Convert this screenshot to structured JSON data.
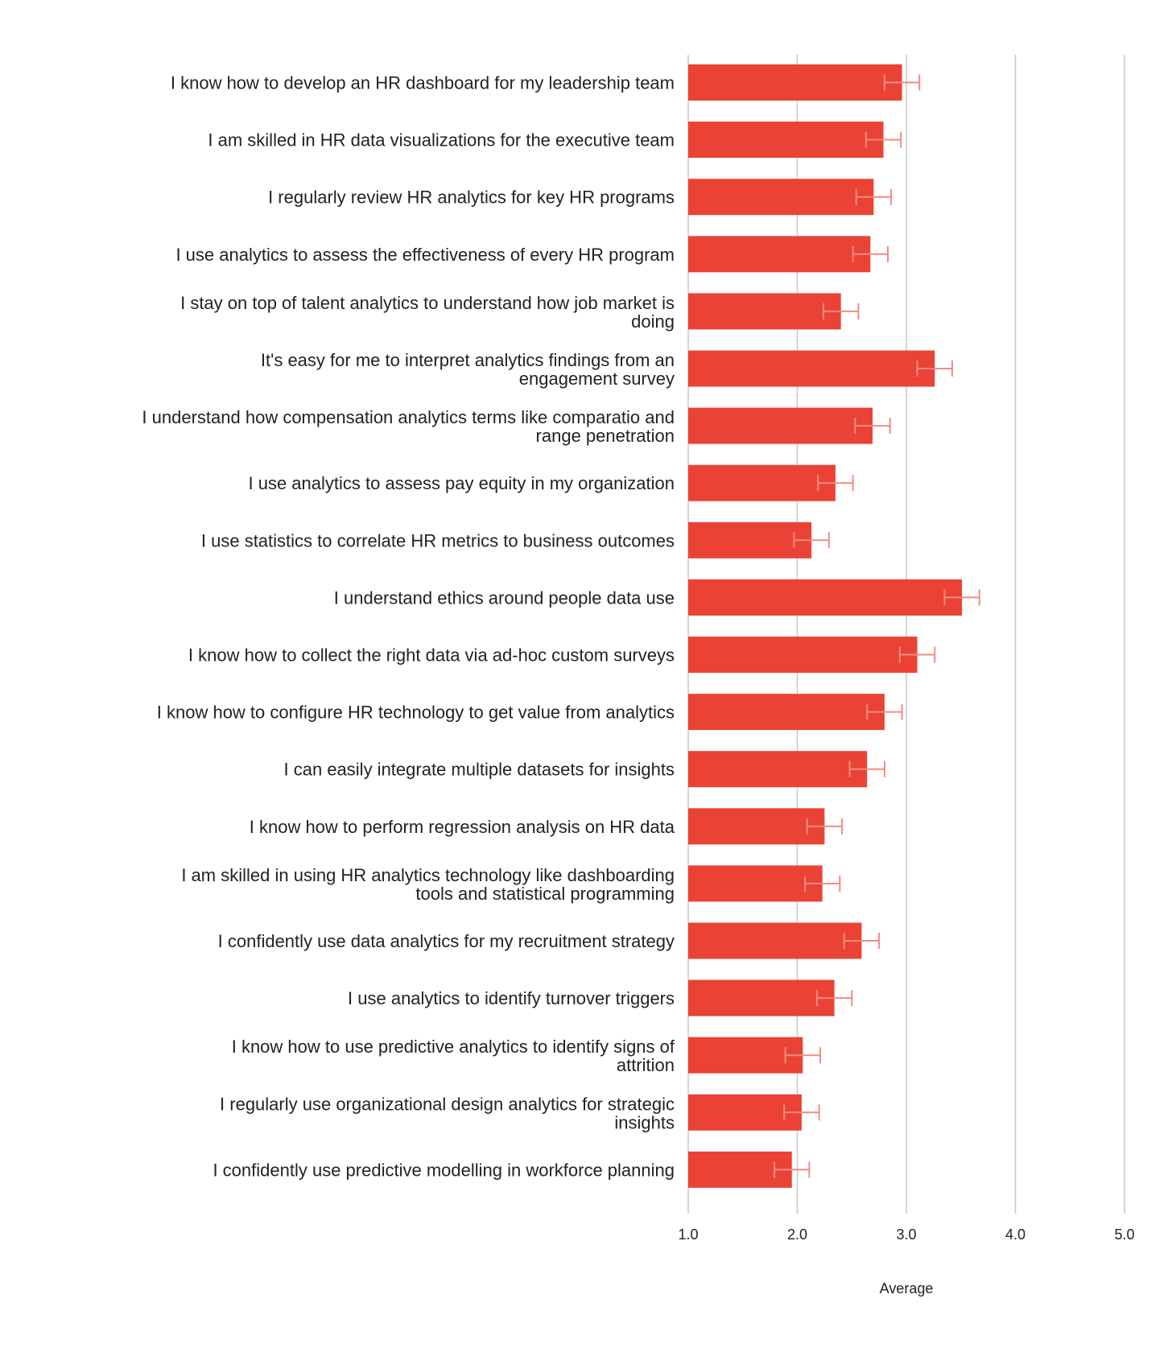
{
  "chart_data": {
    "type": "bar",
    "orientation": "horizontal",
    "title": "",
    "xlabel": "Average",
    "ylabel": "",
    "xlim": [
      1.0,
      5.0
    ],
    "xticks": [
      "1.0",
      "2.0",
      "3.0",
      "4.0",
      "5.0"
    ],
    "grid": true,
    "bar_color": "#ea4335",
    "error_bar_color": "#f28b82",
    "categories": [
      "I know how to develop an HR dashboard for my leadership team",
      "I am skilled in HR data visualizations for the executive team",
      "I regularly review HR analytics for key HR programs",
      "I use analytics to assess the effectiveness of every HR program",
      "I stay on top of talent analytics to understand how job market is doing",
      "It's easy for me to interpret analytics findings from an engagement survey",
      "I understand how compensation analytics terms like comparatio and range penetration",
      "I use analytics to assess pay equity in my organization",
      "I use statistics to correlate HR metrics to business outcomes",
      "I understand ethics around people data use",
      "I know how to collect the right data via ad-hoc custom surveys",
      "I know how to configure HR technology to get value from analytics",
      "I can easily integrate multiple datasets for insights",
      "I know how to perform regression analysis on HR data",
      "I am skilled in using HR analytics technology like dashboarding tools and statistical programming",
      "I confidently use data analytics for my recruitment strategy",
      "I use analytics to identify turnover triggers",
      "I know how to use predictive analytics to identify signs of attrition",
      "I regularly use organizational design analytics for strategic insights",
      "I confidently use predictive modelling in workforce planning"
    ],
    "values": [
      2.96,
      2.79,
      2.7,
      2.67,
      2.4,
      3.26,
      2.69,
      2.35,
      2.13,
      3.51,
      3.1,
      2.8,
      2.64,
      2.25,
      2.23,
      2.59,
      2.34,
      2.05,
      2.04,
      1.95
    ],
    "error_margin": [
      0.16,
      0.16,
      0.16,
      0.16,
      0.16,
      0.16,
      0.16,
      0.16,
      0.16,
      0.16,
      0.16,
      0.16,
      0.16,
      0.16,
      0.16,
      0.16,
      0.16,
      0.16,
      0.16,
      0.16
    ]
  }
}
